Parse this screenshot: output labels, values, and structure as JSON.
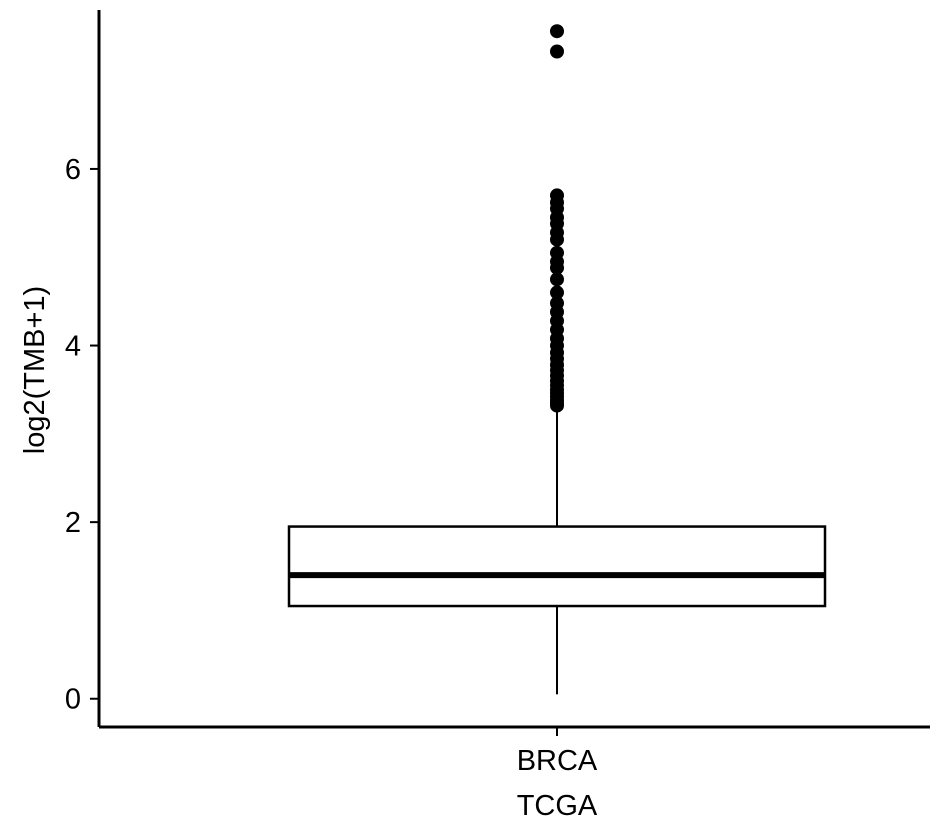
{
  "chart_data": {
    "type": "boxplot",
    "xlabel": "TCGA",
    "ylabel": "log2(TMB+1)",
    "ylim": [
      -0.32,
      7.8
    ],
    "yticks": [
      0,
      2,
      4,
      6
    ],
    "grid": false,
    "legend": "none",
    "categories": [
      "BRCA"
    ],
    "boxes": [
      {
        "category": "BRCA",
        "whisker_low": 0.05,
        "q1": 1.05,
        "median": 1.4,
        "q3": 1.95,
        "whisker_high": 3.3,
        "outliers": [
          3.32,
          3.35,
          3.38,
          3.42,
          3.46,
          3.5,
          3.55,
          3.6,
          3.66,
          3.72,
          3.78,
          3.85,
          3.92,
          4.0,
          4.08,
          4.18,
          4.28,
          4.38,
          4.48,
          4.6,
          4.75,
          4.88,
          4.95,
          5.05,
          5.2,
          5.28,
          5.38,
          5.45,
          5.55,
          5.62,
          5.7,
          7.33,
          7.56
        ]
      }
    ]
  }
}
